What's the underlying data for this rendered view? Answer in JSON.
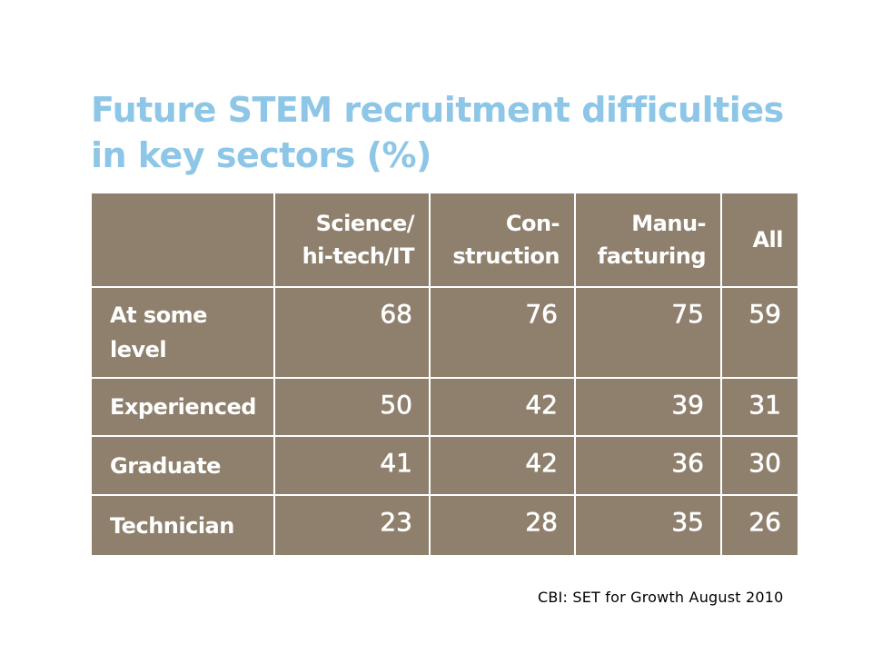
{
  "title": {
    "line1": "Future STEM recruitment difficulties",
    "line2": "in key sectors (%)"
  },
  "source": "CBI: SET for Growth August 2010",
  "colors": {
    "title": "#8dc6e6",
    "table_background": "#8f806d",
    "table_text": "#ffffff",
    "grid_lines": "#ffffff"
  },
  "chart_data": {
    "type": "table",
    "title": "Future STEM recruitment difficulties in key sectors (%)",
    "columns": [
      {
        "line1": "Science/",
        "line2": "hi-tech/IT"
      },
      {
        "line1": "Con-",
        "line2": "struction"
      },
      {
        "line1": "Manu-",
        "line2": "facturing"
      },
      {
        "line1": "",
        "line2": "All"
      }
    ],
    "rows": [
      {
        "line1": "At some",
        "line2": "level",
        "values": [
          "68",
          "76",
          "75",
          "59"
        ]
      },
      {
        "line1": "Experienced",
        "line2": "",
        "values": [
          "50",
          "42",
          "39",
          "31"
        ]
      },
      {
        "line1": "Graduate",
        "line2": "",
        "values": [
          "41",
          "42",
          "36",
          "30"
        ]
      },
      {
        "line1": "Technician",
        "line2": "",
        "values": [
          "23",
          "28",
          "35",
          "26"
        ]
      }
    ]
  }
}
